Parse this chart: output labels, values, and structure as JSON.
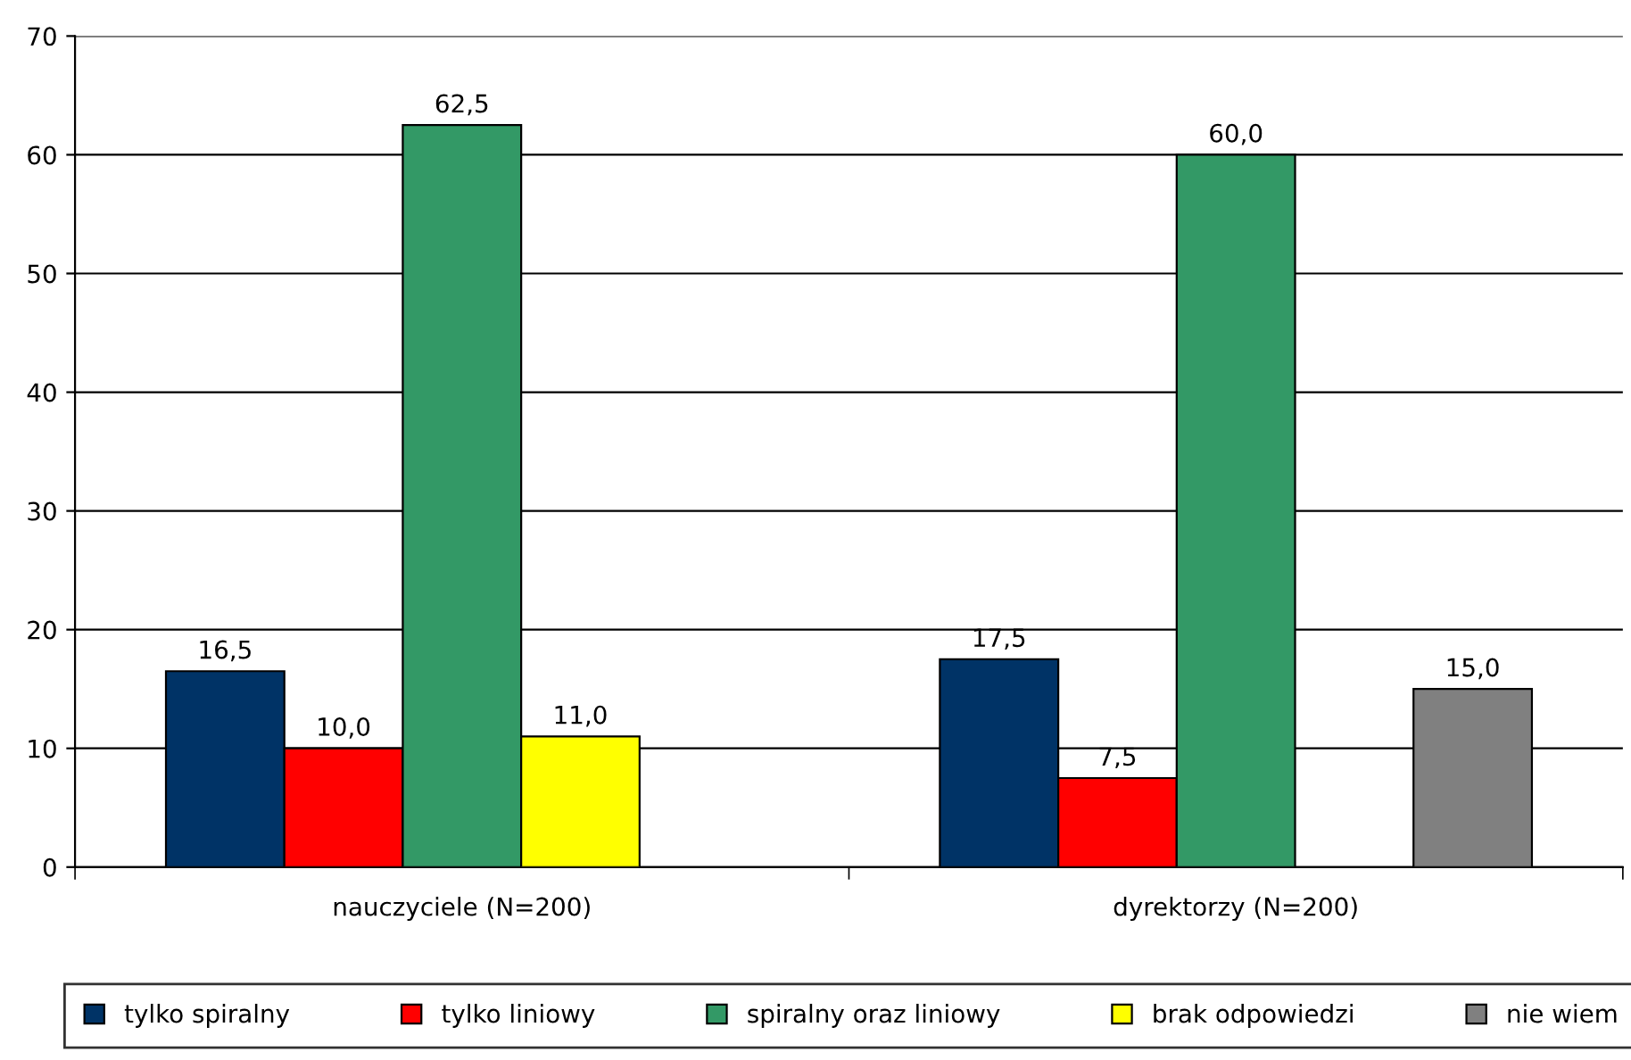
{
  "chart_data": {
    "type": "bar",
    "categories": [
      "nauczyciele (N=200)",
      "dyrektorzy (N=200)"
    ],
    "series": [
      {
        "name": "tylko spiralny",
        "color": "#003366",
        "values": [
          16.5,
          17.5
        ],
        "value_labels": [
          "16,5",
          "17,5"
        ]
      },
      {
        "name": "tylko liniowy",
        "color": "#ff0000",
        "values": [
          10.0,
          7.5
        ],
        "value_labels": [
          "10,0",
          "7,5"
        ]
      },
      {
        "name": "spiralny oraz liniowy",
        "color": "#339966",
        "values": [
          62.5,
          60.0
        ],
        "value_labels": [
          "62,5",
          "60,0"
        ]
      },
      {
        "name": "brak odpowiedzi",
        "color": "#ffff00",
        "values": [
          11.0,
          null
        ],
        "value_labels": [
          "11,0",
          null
        ]
      },
      {
        "name": "nie wiem",
        "color": "#808080",
        "values": [
          null,
          15.0
        ],
        "value_labels": [
          null,
          "15,0"
        ]
      }
    ],
    "ylim": [
      0,
      70
    ],
    "yticks": [
      0,
      10,
      20,
      30,
      40,
      50,
      60,
      70
    ],
    "grid": "y",
    "legend": "bottom"
  }
}
